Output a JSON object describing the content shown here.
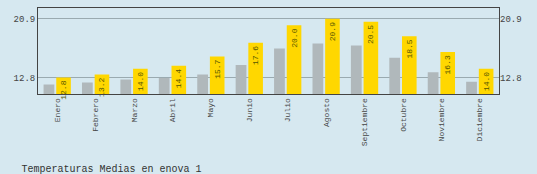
{
  "chart_data": {
    "type": "bar",
    "title": "Temperaturas Medias en enova 1",
    "categories": [
      "Enero",
      "Febrero",
      "Marzo",
      "Abril",
      "Mayo",
      "Junio",
      "Julio",
      "Agosto",
      "Septiembre",
      "Octubre",
      "Noviembre",
      "Diciembre"
    ],
    "series": [
      {
        "color": "#B0B8BB",
        "axis": "y2",
        "values": [
          11.8,
          12.1,
          12.5,
          12.7,
          13.2,
          14.5,
          16.8,
          17.5,
          17.2,
          15.5,
          13.5,
          12.2
        ]
      },
      {
        "color": "#FFD700",
        "data_labels": true,
        "values": [
          12.8,
          13.2,
          14.0,
          14.4,
          15.7,
          17.6,
          20.0,
          20.9,
          20.5,
          18.5,
          16.3,
          14.0
        ],
        "value_labels": [
          "12.8",
          "13.2",
          "14.0",
          "14.4",
          "15.7",
          "17.6",
          "20.0",
          "20.9",
          "20.5",
          "18.5",
          "16.3",
          "14.0"
        ]
      }
    ],
    "ylim": [
      10.5,
      22.4
    ],
    "yticks": [
      12.8,
      20.9
    ],
    "y2lim": [
      10.5,
      22.4
    ],
    "y2ticks": [
      12.8,
      20.9
    ],
    "grid": true
  }
}
